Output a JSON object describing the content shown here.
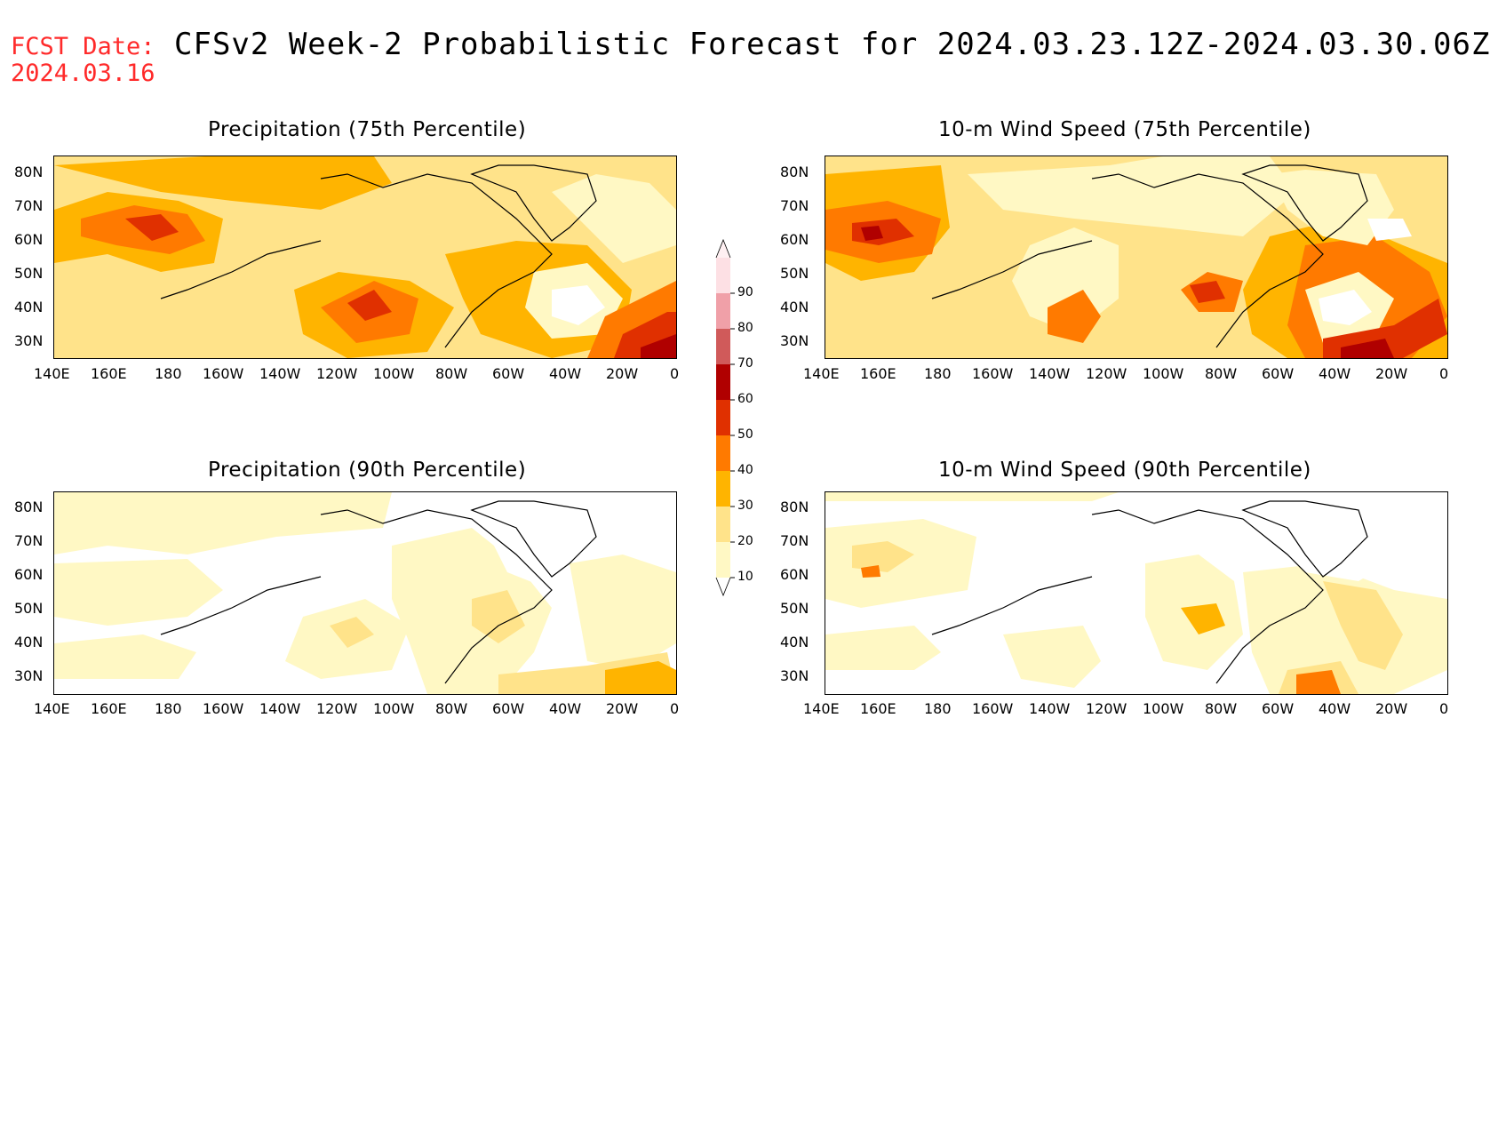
{
  "header": {
    "fcst_label_line1": "FCST Date:",
    "fcst_label_line2": "2024.03.16",
    "title": "CFSv2 Week-2 Probabilistic Forecast for 2024.03.23.12Z-2024.03.30.06Z"
  },
  "panels": [
    {
      "title": "Precipitation (75th Percentile)"
    },
    {
      "title": "10-m Wind Speed (75th Percentile)"
    },
    {
      "title": "Precipitation (90th Percentile)"
    },
    {
      "title": "10-m Wind Speed (90th Percentile)"
    }
  ],
  "axes": {
    "lat_labels": [
      "80N",
      "70N",
      "60N",
      "50N",
      "40N",
      "30N"
    ],
    "lon_labels": [
      "140E",
      "160E",
      "180",
      "160W",
      "140W",
      "120W",
      "100W",
      "80W",
      "60W",
      "40W",
      "20W",
      "0"
    ]
  },
  "colorbar": {
    "levels": [
      "10",
      "20",
      "30",
      "40",
      "50",
      "60",
      "70",
      "80",
      "90"
    ],
    "colors": [
      "#fff8c4",
      "#ffe38a",
      "#ffb400",
      "#ff7a00",
      "#e03000",
      "#b00000",
      "#d05a5a",
      "#f0a0a8",
      "#fde0e4"
    ]
  }
}
